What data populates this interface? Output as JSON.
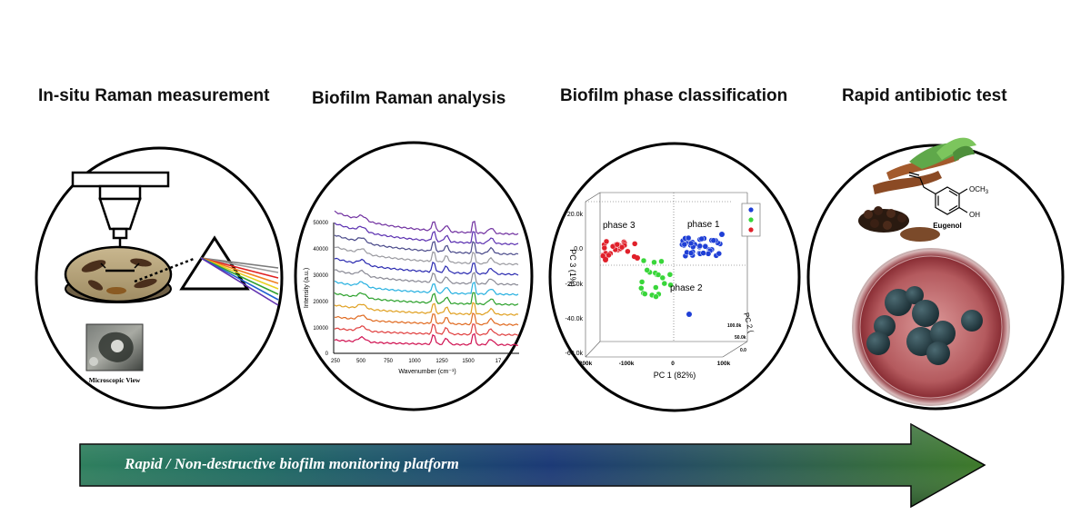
{
  "stages": [
    {
      "title": "In-situ Raman measurement",
      "caption": "Microscopic View"
    },
    {
      "title": "Biofilm Raman analysis"
    },
    {
      "title": "Biofilm phase classification"
    },
    {
      "title": "Rapid antibiotic test"
    }
  ],
  "spectrum_chart": {
    "xlabel": "Wavenumber (cm⁻¹)",
    "ylabel": "Intensity (a.u.)",
    "xticks": [
      "250",
      "500",
      "750",
      "1000",
      "1250",
      "1500",
      "17"
    ],
    "yticks": [
      "0",
      "10000",
      "20000",
      "30000",
      "40000",
      "50000"
    ]
  },
  "chart_data": {
    "type": "scatter",
    "xlabel": "PC 1 (82%)",
    "ylabel": "PC 3 (1%)",
    "zlabel": "PC 2 (",
    "xticks": [
      "200k",
      "-100k",
      "0",
      "100k"
    ],
    "yticks": [
      "20.0k",
      "0.0",
      "-20.0k",
      "-40.0k",
      "-60.0k"
    ],
    "zticks": [
      "100.0k",
      "50.0k",
      "0.0"
    ],
    "series": [
      {
        "name": "phase 1",
        "color": "#1f3fd6"
      },
      {
        "name": "phase 2",
        "color": "#39d63a"
      },
      {
        "name": "phase 3",
        "color": "#e0202a"
      }
    ]
  },
  "molecule": {
    "name": "Eugenol",
    "substituent_1": "OCH",
    "substituent_1_sub": "3",
    "substituent_2": "OH"
  },
  "arrow": {
    "label": "Rapid / Non-destructive biofilm monitoring platform"
  }
}
